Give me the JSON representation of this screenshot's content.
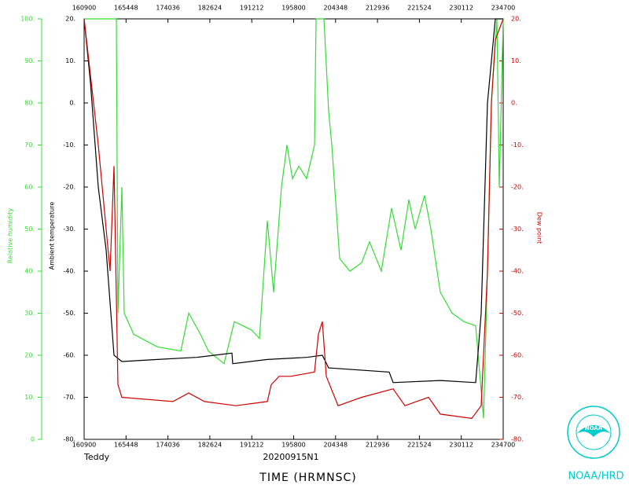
{
  "chart_data": {
    "type": "line",
    "storm": "Teddy",
    "flight": "20200915N1",
    "xlabel": "TIME (HRMNSC)",
    "ylabel": "Ambient temperature",
    "y2label": "Dew point",
    "y3label": "Relative humidity",
    "logo_text": "NOAA",
    "credit": "NOAA/HRD",
    "xlim": [
      58140,
      85620
    ],
    "xticks": [
      {
        "value": 58140,
        "label": "160900"
      },
      {
        "value": 60888,
        "label": "165448"
      },
      {
        "value": 63636,
        "label": "174036"
      },
      {
        "value": 66384,
        "label": "182624"
      },
      {
        "value": 69132,
        "label": "191212"
      },
      {
        "value": 71880,
        "label": "195800"
      },
      {
        "value": 74628,
        "label": "204348"
      },
      {
        "value": 77376,
        "label": "212936"
      },
      {
        "value": 80124,
        "label": "221524"
      },
      {
        "value": 82872,
        "label": "230112"
      },
      {
        "value": 85620,
        "label": "234700"
      }
    ],
    "ylim": [
      -80,
      20
    ],
    "yticks": [
      {
        "value": -80,
        "label": "-80."
      },
      {
        "value": -70,
        "label": "-70."
      },
      {
        "value": -60,
        "label": "-60."
      },
      {
        "value": -50,
        "label": "-50."
      },
      {
        "value": -40,
        "label": "-40."
      },
      {
        "value": -30,
        "label": "-30."
      },
      {
        "value": -20,
        "label": "-20."
      },
      {
        "value": -10,
        "label": "-10."
      },
      {
        "value": 0,
        "label": "0."
      },
      {
        "value": 10,
        "label": "10."
      },
      {
        "value": 20,
        "label": "20."
      }
    ],
    "y2lim": [
      -80,
      20
    ],
    "y2ticks": [
      {
        "value": -80,
        "label": "-80."
      },
      {
        "value": -70,
        "label": "-70."
      },
      {
        "value": -60,
        "label": "-60."
      },
      {
        "value": -50,
        "label": "-50."
      },
      {
        "value": -40,
        "label": "-40."
      },
      {
        "value": -30,
        "label": "-30."
      },
      {
        "value": -20,
        "label": "-20."
      },
      {
        "value": -10,
        "label": "-10."
      },
      {
        "value": 0,
        "label": "0."
      },
      {
        "value": 10,
        "label": "10."
      },
      {
        "value": 20,
        "label": "20."
      }
    ],
    "y3lim": [
      0,
      100
    ],
    "y3ticks": [
      0,
      {
        "value": 10,
        "label": "10."
      },
      {
        "value": 20,
        "label": "20."
      },
      {
        "value": 30,
        "label": "30."
      },
      {
        "value": 40,
        "label": "40."
      },
      {
        "value": 50,
        "label": "50."
      },
      {
        "value": 60,
        "label": "60."
      },
      {
        "value": 70,
        "label": "70."
      },
      {
        "value": 80,
        "label": "80."
      },
      {
        "value": 90,
        "label": "90."
      },
      {
        "value": 100,
        "label": "100."
      }
    ],
    "series": [
      {
        "name": "Relative humidity",
        "color": "#33dd33",
        "axis": "y3",
        "x": [
          58140,
          60254,
          60357,
          60615,
          60770,
          61388,
          62935,
          64482,
          64997,
          65771,
          66286,
          67318,
          67988,
          69122,
          69638,
          70153,
          70566,
          71082,
          71442,
          71803,
          72216,
          72731,
          73247,
          73350,
          73866,
          74175,
          74381,
          74897,
          75567,
          76341,
          76856,
          77630,
          78300,
          78919,
          79434,
          79847,
          80465,
          80878,
          81497,
          82270,
          83043,
          83817,
          84332,
          84590,
          84848,
          85209,
          85364,
          85620
        ],
        "values": [
          100,
          100,
          30,
          60,
          30,
          25,
          22,
          21,
          30,
          25,
          21,
          18,
          28,
          26,
          24,
          52,
          35,
          60,
          70,
          62,
          65,
          62,
          70,
          100,
          100,
          78,
          70,
          43,
          40,
          42,
          47,
          40,
          55,
          45,
          57,
          50,
          58,
          50,
          35,
          30,
          28,
          27,
          5,
          40,
          80,
          100,
          60,
          100
        ]
      },
      {
        "name": "Ambient temperature",
        "color": "#000000",
        "axis": "y",
        "x": [
          58140,
          58552,
          59068,
          59584,
          60099,
          60615,
          62935,
          65513,
          67833,
          67885,
          70153,
          72731,
          73763,
          74175,
          78145,
          78403,
          81497,
          83817,
          84178,
          84590,
          85106,
          85620
        ],
        "values": [
          20,
          5,
          -20,
          -35,
          -60,
          -61.5,
          -61,
          -60.5,
          -59.5,
          -62,
          -61,
          -60.5,
          -60,
          -63,
          -64,
          -66.5,
          -66,
          -66.5,
          -50,
          0,
          20,
          20
        ]
      },
      {
        "name": "Dew point",
        "color": "#cc0000",
        "axis": "y2",
        "x": [
          58140,
          59068,
          59841,
          60099,
          60357,
          60615,
          63966,
          64997,
          66029,
          68091,
          70153,
          70411,
          70927,
          71700,
          73247,
          73505,
          73763,
          74020,
          74794,
          76341,
          78403,
          79176,
          80723,
          81497,
          83559,
          84178,
          84590,
          84848,
          85106,
          85620
        ],
        "values": [
          20,
          -10,
          -40,
          -15,
          -67,
          -70,
          -71,
          -69,
          -71,
          -72,
          -71,
          -67,
          -65,
          -65,
          -64,
          -55,
          -52,
          -65,
          -72,
          -70,
          -68,
          -72,
          -70,
          -74,
          -75,
          -72,
          -40,
          0,
          15,
          20
        ]
      }
    ]
  }
}
